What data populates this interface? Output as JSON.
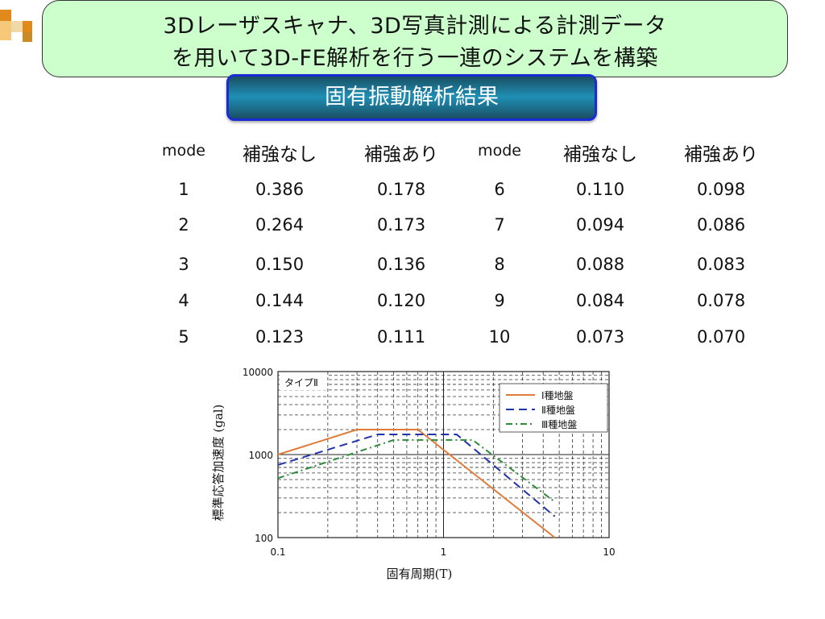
{
  "header": {
    "title_line1": "3Dレーザスキャナ、3D写真計測による計測データ",
    "title_line2": "を用いて3D-FE解析を行う一連のシステムを構築",
    "subtitle": "固有振動解析結果"
  },
  "table": {
    "columns": [
      "mode",
      "補強なし",
      "補強あり",
      "mode",
      "補強なし",
      "補強あり"
    ],
    "rows": [
      [
        "1",
        "0.386",
        "0.178",
        "6",
        "0.110",
        "0.098"
      ],
      [
        "2",
        "0.264",
        "0.173",
        "7",
        "0.094",
        "0.086"
      ],
      [
        "3",
        "0.150",
        "0.136",
        "8",
        "0.088",
        "0.083"
      ],
      [
        "4",
        "0.144",
        "0.120",
        "9",
        "0.084",
        "0.078"
      ],
      [
        "5",
        "0.123",
        "0.111",
        "10",
        "0.073",
        "0.070"
      ]
    ]
  },
  "colors": {
    "title_bg": "#ccffcc",
    "subtitle_border": "#1a2bd6",
    "subtitle_bg": "#1f8fb5",
    "deco_orange": "#e08a1e",
    "deco_yellow": "#f5c87a",
    "deco_tan": "#c98a2a"
  },
  "chart_data": {
    "type": "line",
    "title": "タイプⅡ",
    "xlabel": "固有周期(T)",
    "ylabel": "標準応答加速度 (gal)",
    "xscale": "log",
    "yscale": "log",
    "xlim": [
      0.1,
      10
    ],
    "ylim": [
      100,
      10000
    ],
    "x_ticks": [
      "0.1",
      "1",
      "10"
    ],
    "y_ticks": [
      "10000",
      "1000",
      "100"
    ],
    "grid": true,
    "legend_position": "top-right",
    "series": [
      {
        "name": "Ⅰ種地盤",
        "color": "#e07b39",
        "dash": "solid",
        "x": [
          0.1,
          0.3,
          0.7,
          4.7
        ],
        "y": [
          1000,
          2000,
          2000,
          100
        ]
      },
      {
        "name": "Ⅱ種地盤",
        "color": "#2233aa",
        "dash": "dash",
        "x": [
          0.1,
          0.4,
          1.2,
          4.7
        ],
        "y": [
          750,
          1750,
          1750,
          180
        ]
      },
      {
        "name": "Ⅲ種地盤",
        "color": "#2e8b3a",
        "dash": "dashdot",
        "x": [
          0.1,
          0.5,
          1.5,
          4.7
        ],
        "y": [
          520,
          1500,
          1500,
          270
        ]
      }
    ]
  }
}
